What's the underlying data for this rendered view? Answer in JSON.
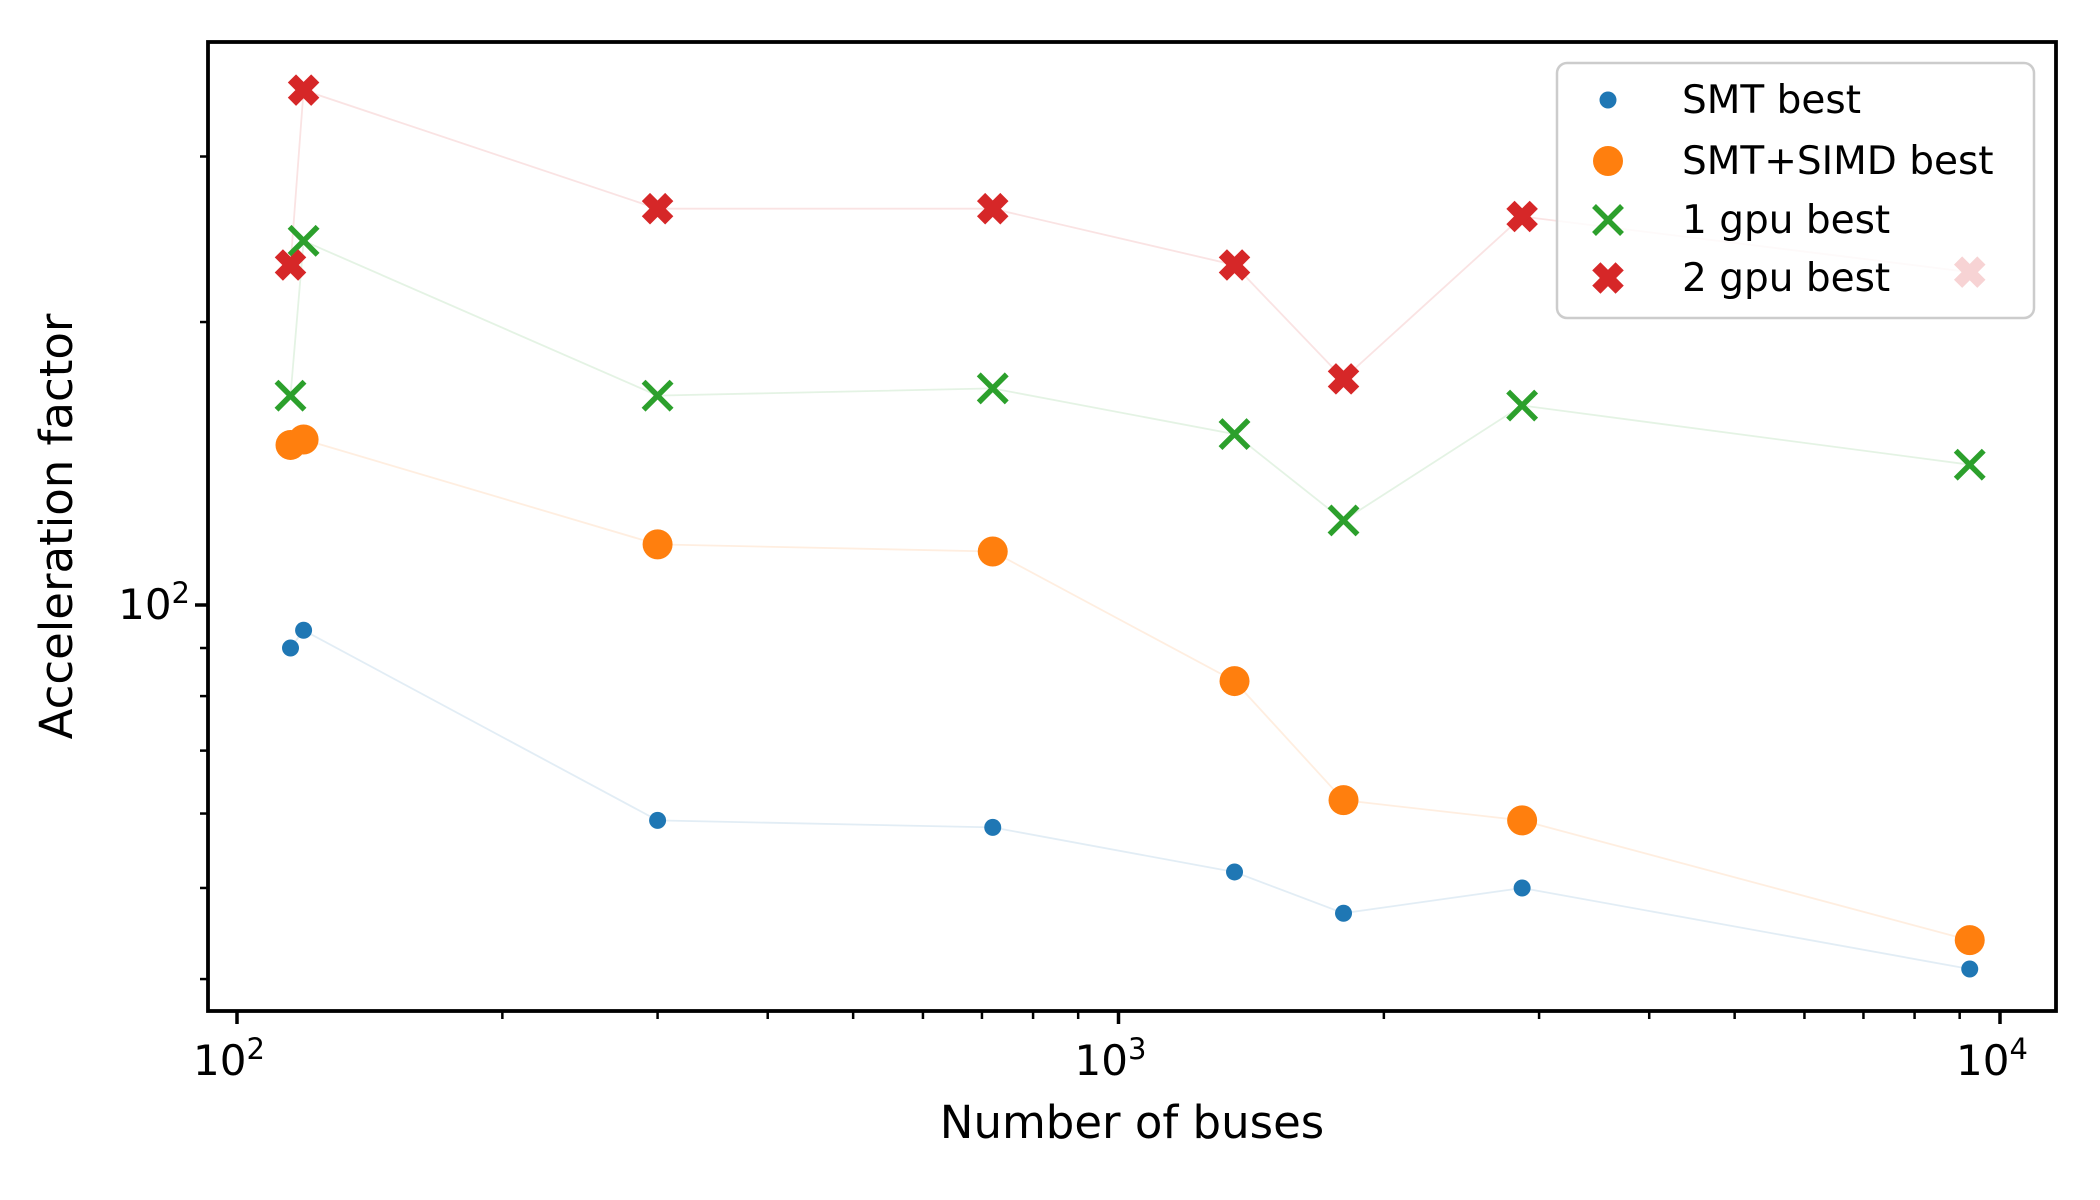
{
  "figure": {
    "background": "#ffffff",
    "text_color": "#000000"
  },
  "chart_data": {
    "type": "scatter",
    "title": "",
    "xlabel": "Number of buses",
    "ylabel": "Acceleration factor",
    "x_scale": "log",
    "y_scale": "log",
    "xlim": [
      93,
      11500
    ],
    "ylim": [
      37,
      397
    ],
    "grid": false,
    "x_major_ticks": [
      {
        "value": 100,
        "label_base": "10",
        "label_exp": "2"
      },
      {
        "value": 1000,
        "label_base": "10",
        "label_exp": "3"
      },
      {
        "value": 10000,
        "label_base": "10",
        "label_exp": "4"
      }
    ],
    "x_minor_ticks": [
      200,
      300,
      400,
      500,
      600,
      700,
      800,
      900,
      2000,
      3000,
      4000,
      5000,
      6000,
      7000,
      8000,
      9000
    ],
    "y_major_ticks": [
      {
        "value": 100,
        "label_base": "10",
        "label_exp": "2"
      }
    ],
    "y_minor_ticks": [
      40,
      50,
      60,
      70,
      80,
      90,
      200,
      300
    ],
    "legend": {
      "position": "upper right",
      "entries": [
        {
          "label": "SMT best",
          "marker": "dot-small",
          "color": "#1f77b4"
        },
        {
          "label": "SMT+SIMD best",
          "marker": "dot-large",
          "color": "#ff7f0e"
        },
        {
          "label": "1 gpu best",
          "marker": "x-thin",
          "color": "#2ca02c"
        },
        {
          "label": "2 gpu best",
          "marker": "x-bold",
          "color": "#d62728"
        }
      ]
    },
    "series": [
      {
        "name": "SMT best",
        "marker": "dot-small",
        "color": "#1f77b4",
        "points": [
          [
            115,
            90
          ],
          [
            119,
            94
          ],
          [
            300,
            59
          ],
          [
            720,
            58
          ],
          [
            1354,
            52
          ],
          [
            1800,
            47
          ],
          [
            2870,
            50
          ],
          [
            9240,
            41
          ]
        ]
      },
      {
        "name": "SMT+SIMD best",
        "marker": "dot-large",
        "color": "#ff7f0e",
        "points": [
          [
            115,
            148
          ],
          [
            119,
            150
          ],
          [
            300,
            116
          ],
          [
            720,
            114
          ],
          [
            1354,
            83
          ],
          [
            1800,
            62
          ],
          [
            2870,
            59
          ],
          [
            9240,
            44
          ]
        ]
      },
      {
        "name": "1 gpu best",
        "marker": "x-thin",
        "color": "#2ca02c",
        "points": [
          [
            115,
            167
          ],
          [
            119,
            244
          ],
          [
            300,
            167
          ],
          [
            720,
            170
          ],
          [
            1354,
            152
          ],
          [
            1800,
            123
          ],
          [
            2870,
            163
          ],
          [
            9240,
            141
          ]
        ]
      },
      {
        "name": "2 gpu best",
        "marker": "x-bold",
        "color": "#d62728",
        "points": [
          [
            115,
            230
          ],
          [
            119,
            353
          ],
          [
            300,
            264
          ],
          [
            720,
            264
          ],
          [
            1354,
            230
          ],
          [
            1800,
            174
          ],
          [
            2870,
            259
          ],
          [
            9240,
            226
          ]
        ]
      }
    ],
    "connecting_lines": {
      "opacity": 0.13,
      "width": 1.8
    }
  }
}
